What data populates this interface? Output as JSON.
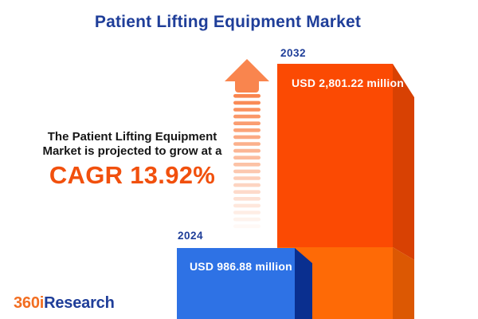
{
  "title": "Patient Lifting Equipment Market",
  "description": {
    "line1": "The Patient Lifting Equipment",
    "line2": "Market is projected to grow at a",
    "cagr": "CAGR 13.92%"
  },
  "bars": [
    {
      "year": "2024",
      "value_label": "USD 986.88 million"
    },
    {
      "year": "2032",
      "value_label": "USD 2,801.22 million"
    }
  ],
  "logo": {
    "part1": "360i",
    "part2": "Research"
  },
  "icons": {
    "growth_arrow": "upward striped growth arrow"
  },
  "colors": {
    "title_blue": "#1F3E99",
    "cagr_orange": "#F1500D",
    "text_dark": "#161616",
    "bar32_front_top": "#FB4A03",
    "bar32_front_bottom": "#FE6A06",
    "bar32_side_top": "#D84103",
    "bar32_side_bottom": "#DC5803",
    "bar24_front": "#2E72E5",
    "bar24_side": "#0A2F8F",
    "arrow": "#F9854E",
    "logo_orange": "#F26E21",
    "logo_blue": "#1F3E99",
    "value_text": "#FFFFFF"
  },
  "chart_data": {
    "type": "bar",
    "title": "Patient Lifting Equipment Market",
    "categories": [
      "2024",
      "2032"
    ],
    "values": [
      986.88,
      2801.22
    ],
    "unit": "USD million",
    "value_labels": [
      "USD 986.88 million",
      "USD 2,801.22 million"
    ],
    "cagr_percent": 13.92,
    "orientation": "vertical",
    "legend": false,
    "grid": false,
    "style_notes": "3D beveled bars, 2024 blue, 2032 orange, striped fade arrow between bars"
  }
}
